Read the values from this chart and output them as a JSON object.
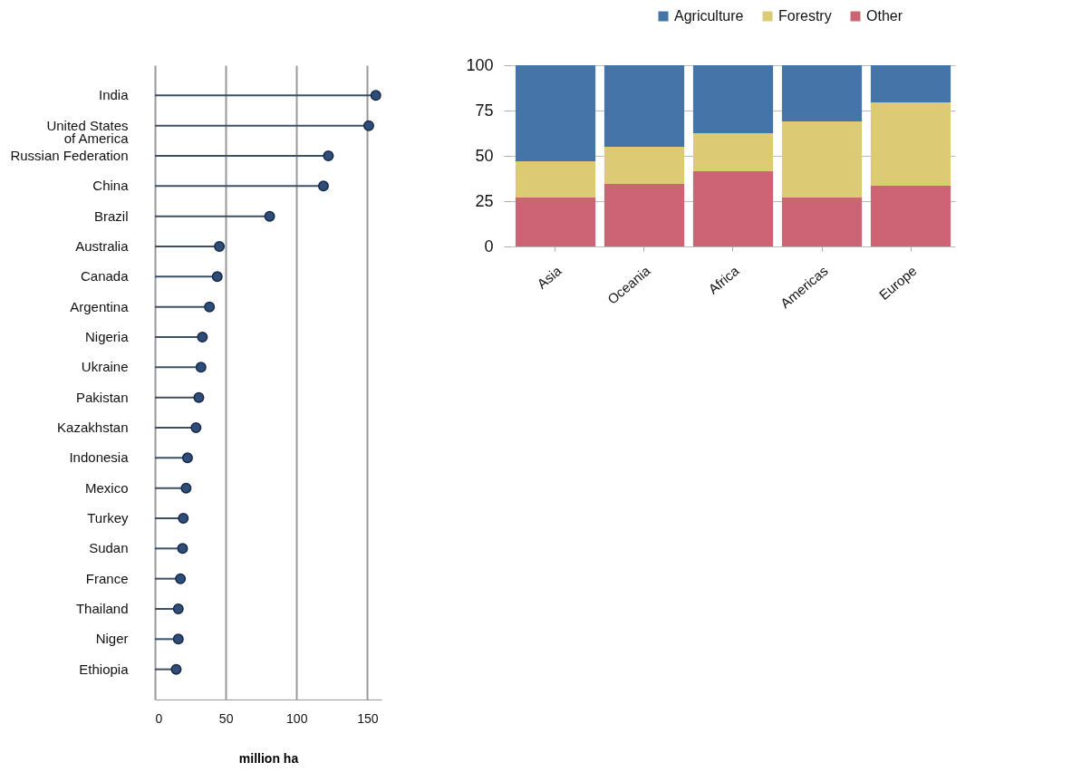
{
  "chart_data": [
    {
      "type": "lollipop",
      "orientation": "horizontal",
      "xlabel": "million ha",
      "categories": [
        "India",
        "United States of America",
        "Russian Federation",
        "China",
        "Brazil",
        "Australia",
        "Canada",
        "Argentina",
        "Nigeria",
        "Ukraine",
        "Pakistan",
        "Kazakhstan",
        "Indonesia",
        "Mexico",
        "Turkey",
        "Sudan",
        "France",
        "Thailand",
        "Niger",
        "Ethiopia"
      ],
      "values": [
        156,
        151,
        122.5,
        119,
        81,
        45.5,
        44,
        38.5,
        33.5,
        32.5,
        31,
        29,
        23,
        22,
        20,
        19.5,
        18,
        16.5,
        16.5,
        15
      ],
      "color": "#2e4d78",
      "marker": "circle",
      "xlim": [
        0,
        160
      ],
      "xticks": [
        0,
        50,
        100,
        150
      ],
      "grid": "x"
    },
    {
      "type": "bar",
      "stacked": true,
      "categories": [
        "Asia",
        "Oceania",
        "Africa",
        "Americas",
        "Europe"
      ],
      "series": [
        {
          "name": "Other",
          "color": "#cc6475",
          "values": [
            27,
            34.5,
            41.5,
            27,
            33.5
          ]
        },
        {
          "name": "Forestry",
          "color": "#dccb74",
          "values": [
            20,
            20.5,
            21,
            42,
            46
          ]
        },
        {
          "name": "Agriculture",
          "color": "#4575a8",
          "values": [
            53,
            45,
            37.5,
            31,
            20.5
          ]
        }
      ],
      "ylim": [
        0,
        100
      ],
      "yticks": [
        0,
        25,
        50,
        75,
        100
      ],
      "grid": "y",
      "legend": "top right"
    }
  ]
}
